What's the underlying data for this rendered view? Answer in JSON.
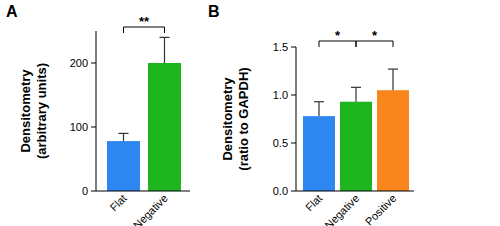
{
  "chart_data": [
    {
      "type": "bar",
      "panel": "A",
      "y_label": [
        "Densitometry",
        "(arbitrary units)"
      ],
      "categories": [
        "Flat",
        "Negative"
      ],
      "values": [
        78,
        200
      ],
      "errors": [
        12,
        40
      ],
      "colors": [
        "#2e86f0",
        "#1fb51f"
      ],
      "ylim": [
        0,
        250
      ],
      "yticks": [
        0,
        100,
        200
      ],
      "brackets": [
        {
          "from": 0,
          "to": 1,
          "label": "**"
        }
      ]
    },
    {
      "type": "bar",
      "panel": "B",
      "y_label": [
        "Densitometry",
        "(ratio to GAPDH)"
      ],
      "categories": [
        "Flat",
        "Negative",
        "Positive"
      ],
      "values": [
        0.78,
        0.93,
        1.05
      ],
      "errors": [
        0.15,
        0.15,
        0.22
      ],
      "colors": [
        "#2e86f0",
        "#1fb51f",
        "#f8861c"
      ],
      "ylim": [
        0,
        1.5
      ],
      "yticks": [
        {
          "value": 0,
          "label": "0.0"
        },
        0.5,
        {
          "value": 1,
          "label": "1.0"
        },
        1.5
      ],
      "brackets": [
        {
          "from": 0,
          "to": 1,
          "label": "*"
        },
        {
          "from": 1,
          "to": 2,
          "label": "*"
        }
      ]
    }
  ]
}
